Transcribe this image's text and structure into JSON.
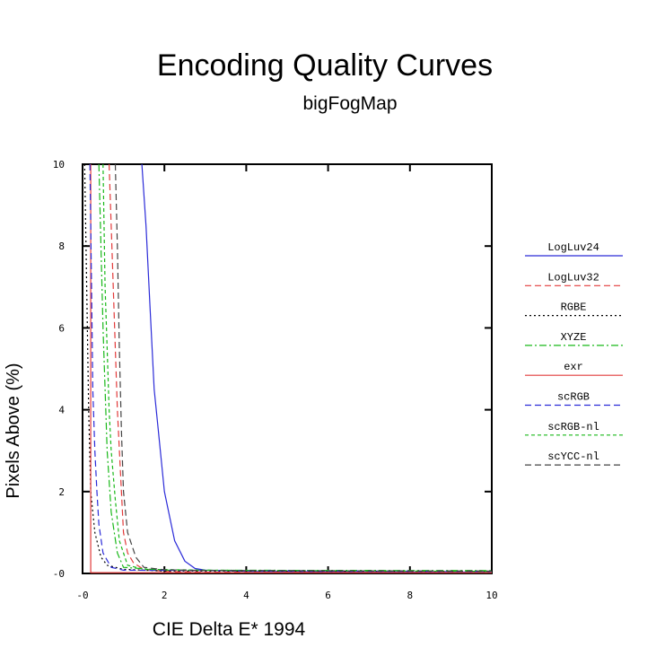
{
  "chart_data": {
    "type": "line",
    "title": "Encoding Quality Curves",
    "subtitle": "bigFogMap",
    "xlabel": "CIE Delta E* 1994",
    "ylabel": "Pixels Above (%)",
    "xlim": [
      0,
      10
    ],
    "ylim": [
      0,
      10
    ],
    "x_ticks": [
      0,
      2,
      4,
      6,
      8,
      10
    ],
    "x_tick_labels": [
      "-0",
      "2",
      "4",
      "6",
      "8",
      "10"
    ],
    "y_ticks": [
      0,
      2,
      4,
      6,
      8,
      10
    ],
    "y_tick_labels": [
      "-0",
      "2",
      "4",
      "6",
      "8",
      "10"
    ],
    "grid": false,
    "legend_position": "right",
    "series": [
      {
        "name": "LogLuv24",
        "color": "#2b2bd8",
        "dash": "solid",
        "x": [
          1.45,
          1.55,
          1.65,
          1.75,
          1.85,
          2.0,
          2.25,
          2.5,
          2.75,
          3.0,
          4.0,
          10.0
        ],
        "y": [
          10,
          8.5,
          6.5,
          4.5,
          3.5,
          2.0,
          0.8,
          0.3,
          0.12,
          0.08,
          0.05,
          0.03
        ]
      },
      {
        "name": "LogLuv32",
        "color": "#e23a3a",
        "dash": "long",
        "x": [
          0.65,
          0.75,
          0.85,
          0.95,
          1.0,
          1.1,
          1.25,
          1.5,
          2.0,
          3.0,
          10.0
        ],
        "y": [
          10,
          7.0,
          4.0,
          2.0,
          1.0,
          0.5,
          0.25,
          0.1,
          0.05,
          0.03,
          0.02
        ]
      },
      {
        "name": "RGBE",
        "color": "#000000",
        "dash": "dot",
        "x": [
          0.05,
          0.1,
          0.15,
          0.2,
          0.3,
          0.45,
          0.6,
          1.0,
          2.0,
          10.0
        ],
        "y": [
          10,
          7.0,
          4.0,
          2.0,
          1.0,
          0.4,
          0.2,
          0.1,
          0.06,
          0.05
        ]
      },
      {
        "name": "XYZE",
        "color": "#18b818",
        "dash": "dashdot",
        "x": [
          0.4,
          0.45,
          0.5,
          0.55,
          0.6,
          0.7,
          0.85,
          1.0,
          2.0,
          10.0
        ],
        "y": [
          10,
          8.0,
          6.0,
          4.5,
          3.0,
          1.5,
          0.5,
          0.15,
          0.08,
          0.07
        ]
      },
      {
        "name": "exr",
        "color": "#e23a3a",
        "dash": "solid",
        "x": [
          0.2,
          0.2,
          10.0
        ],
        "y": [
          10,
          0.02,
          0.02
        ]
      },
      {
        "name": "scRGB",
        "color": "#2b2bd8",
        "dash": "long",
        "x": [
          0.18,
          0.22,
          0.25,
          0.3,
          0.35,
          0.4,
          0.5,
          0.7,
          1.0,
          10.0
        ],
        "y": [
          10,
          7.0,
          4.5,
          3.0,
          2.0,
          1.2,
          0.5,
          0.15,
          0.08,
          0.05
        ]
      },
      {
        "name": "scRGB-nl",
        "color": "#18b818",
        "dash": "short",
        "x": [
          0.5,
          0.55,
          0.6,
          0.65,
          0.7,
          0.8,
          0.9,
          1.1,
          1.5,
          3.0,
          10.0
        ],
        "y": [
          10,
          7.0,
          5.5,
          4.0,
          3.0,
          1.8,
          0.8,
          0.2,
          0.1,
          0.08,
          0.05
        ]
      },
      {
        "name": "scYCC-nl",
        "color": "#444444",
        "dash": "long",
        "x": [
          0.8,
          0.85,
          0.9,
          0.95,
          1.0,
          1.1,
          1.3,
          1.5,
          2.0,
          3.0,
          10.0
        ],
        "y": [
          10,
          8.0,
          5.5,
          3.5,
          2.0,
          1.0,
          0.4,
          0.15,
          0.09,
          0.07,
          0.06
        ]
      }
    ]
  }
}
